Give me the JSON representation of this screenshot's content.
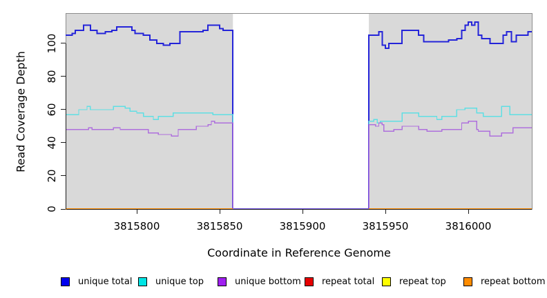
{
  "figure": {
    "bg": "#ffffff"
  },
  "panel": {
    "bg": "#d9d9d9",
    "border_color": "#8c8c8c",
    "axis_color": "#1a1a1a",
    "gap_bg": "#ffffff"
  },
  "x_axis": {
    "label": "Coordinate in Reference Genome"
  },
  "y_axis": {
    "label": "Read Coverage Depth"
  },
  "legend": {
    "entries": [
      {
        "label": "unique total",
        "color": "#0000ee"
      },
      {
        "label": "unique top",
        "color": "#00e5e5"
      },
      {
        "label": "unique bottom",
        "color": "#a020f0"
      },
      {
        "label": "repeat total",
        "color": "#e60000"
      },
      {
        "label": "repeat top",
        "color": "#ffff00"
      },
      {
        "label": "repeat bottom",
        "color": "#ff8c00"
      }
    ]
  },
  "chart_data": {
    "type": "line",
    "step": true,
    "title": "",
    "xlabel": "Coordinate in Reference Genome",
    "ylabel": "Read Coverage Depth",
    "xlim": [
      3815757.5,
      3816038.3
    ],
    "ylim": [
      0,
      117.9
    ],
    "x_ticks": [
      3815800,
      3815850,
      3815900,
      3815950,
      3816000
    ],
    "y_ticks": [
      0,
      20,
      40,
      60,
      80,
      100
    ],
    "grid": false,
    "legend_position": "bottom",
    "gap_region": [
      3815858,
      3815940
    ],
    "series": [
      {
        "name": "unique total",
        "color": "#2424d9",
        "width": 2,
        "segments": [
          [
            [
              3815757,
              105
            ],
            [
              3815761,
              106
            ],
            [
              3815763,
              108
            ],
            [
              3815768,
              111
            ],
            [
              3815772,
              108
            ],
            [
              3815776,
              106
            ],
            [
              3815781,
              107
            ],
            [
              3815785,
              108
            ],
            [
              3815788,
              110
            ],
            [
              3815797,
              108
            ],
            [
              3815799,
              106
            ],
            [
              3815804,
              105
            ],
            [
              3815808,
              102
            ],
            [
              3815812,
              100
            ],
            [
              3815816,
              99
            ],
            [
              3815820,
              100
            ],
            [
              3815826,
              107
            ],
            [
              3815840,
              108
            ],
            [
              3815843,
              111
            ],
            [
              3815850,
              109
            ],
            [
              3815852,
              108
            ],
            [
              3815858,
              0
            ],
            [
              3815940,
              105
            ],
            [
              3815946,
              107
            ],
            [
              3815948,
              99
            ],
            [
              3815950,
              97
            ],
            [
              3815952,
              100
            ],
            [
              3815960,
              108
            ],
            [
              3815970,
              105
            ],
            [
              3815973,
              101
            ],
            [
              3815988,
              102
            ],
            [
              3815993,
              103
            ],
            [
              3815996,
              108
            ],
            [
              3815998,
              111
            ],
            [
              3816000,
              113
            ],
            [
              3816002,
              111
            ],
            [
              3816004,
              113
            ],
            [
              3816006,
              105
            ],
            [
              3816008,
              103
            ],
            [
              3816013,
              100
            ],
            [
              3816021,
              105
            ],
            [
              3816023,
              107
            ],
            [
              3816026,
              101
            ],
            [
              3816029,
              105
            ],
            [
              3816036,
              107
            ],
            [
              3816038.3,
              107
            ]
          ]
        ]
      },
      {
        "name": "unique top",
        "color": "#5fdfe4",
        "width": 1.4,
        "segments": [
          [
            [
              3815757,
              57
            ],
            [
              3815765,
              60
            ],
            [
              3815770,
              62
            ],
            [
              3815772,
              60
            ],
            [
              3815786,
              62
            ],
            [
              3815793,
              61
            ],
            [
              3815796,
              59
            ],
            [
              3815800,
              58
            ],
            [
              3815804,
              56
            ],
            [
              3815810,
              54
            ],
            [
              3815813,
              56
            ],
            [
              3815822,
              58
            ],
            [
              3815846,
              57
            ],
            [
              3815858,
              0
            ],
            [
              3815940,
              53
            ],
            [
              3815943,
              54
            ],
            [
              3815945,
              52
            ],
            [
              3815947,
              53
            ],
            [
              3815960,
              58
            ],
            [
              3815970,
              56
            ],
            [
              3815981,
              54
            ],
            [
              3815984,
              56
            ],
            [
              3815993,
              60
            ],
            [
              3815998,
              61
            ],
            [
              3816005,
              58
            ],
            [
              3816009,
              56
            ],
            [
              3816020,
              62
            ],
            [
              3816025,
              57
            ],
            [
              3816038.3,
              57
            ]
          ]
        ]
      },
      {
        "name": "unique bottom",
        "color": "#ae70dd",
        "width": 1.4,
        "segments": [
          [
            [
              3815757,
              48
            ],
            [
              3815771,
              49
            ],
            [
              3815773,
              48
            ],
            [
              3815786,
              49
            ],
            [
              3815790,
              48
            ],
            [
              3815807,
              46
            ],
            [
              3815813,
              45
            ],
            [
              3815821,
              44
            ],
            [
              3815825,
              48
            ],
            [
              3815836,
              50
            ],
            [
              3815843,
              51
            ],
            [
              3815845,
              53
            ],
            [
              3815847,
              52
            ],
            [
              3815858,
              0
            ],
            [
              3815940,
              51
            ],
            [
              3815944,
              50
            ],
            [
              3815946,
              52
            ],
            [
              3815948,
              51
            ],
            [
              3815949,
              47
            ],
            [
              3815955,
              48
            ],
            [
              3815960,
              50
            ],
            [
              3815970,
              48
            ],
            [
              3815975,
              47
            ],
            [
              3815984,
              48
            ],
            [
              3815996,
              52
            ],
            [
              3816000,
              53
            ],
            [
              3816005,
              48
            ],
            [
              3816006,
              47
            ],
            [
              3816013,
              44
            ],
            [
              3816020,
              46
            ],
            [
              3816027,
              49
            ],
            [
              3816038.3,
              49
            ]
          ]
        ]
      },
      {
        "name": "repeat total",
        "color": "#e60000",
        "width": 1.5,
        "segments": [
          [
            [
              3815757,
              0
            ],
            [
              3815858,
              0
            ]
          ],
          [
            [
              3815940,
              0
            ],
            [
              3816038.3,
              0
            ]
          ]
        ]
      },
      {
        "name": "repeat top",
        "color": "#ffff00",
        "width": 1.5,
        "segments": [
          [
            [
              3815757,
              0
            ],
            [
              3815858,
              0
            ]
          ],
          [
            [
              3815940,
              0
            ],
            [
              3816038.3,
              0
            ]
          ]
        ]
      },
      {
        "name": "repeat bottom",
        "color": "#ff8c00",
        "width": 1.8,
        "segments": [
          [
            [
              3815757,
              0
            ],
            [
              3815858,
              0
            ]
          ],
          [
            [
              3815940,
              0
            ],
            [
              3816038.3,
              0
            ]
          ]
        ]
      }
    ]
  }
}
